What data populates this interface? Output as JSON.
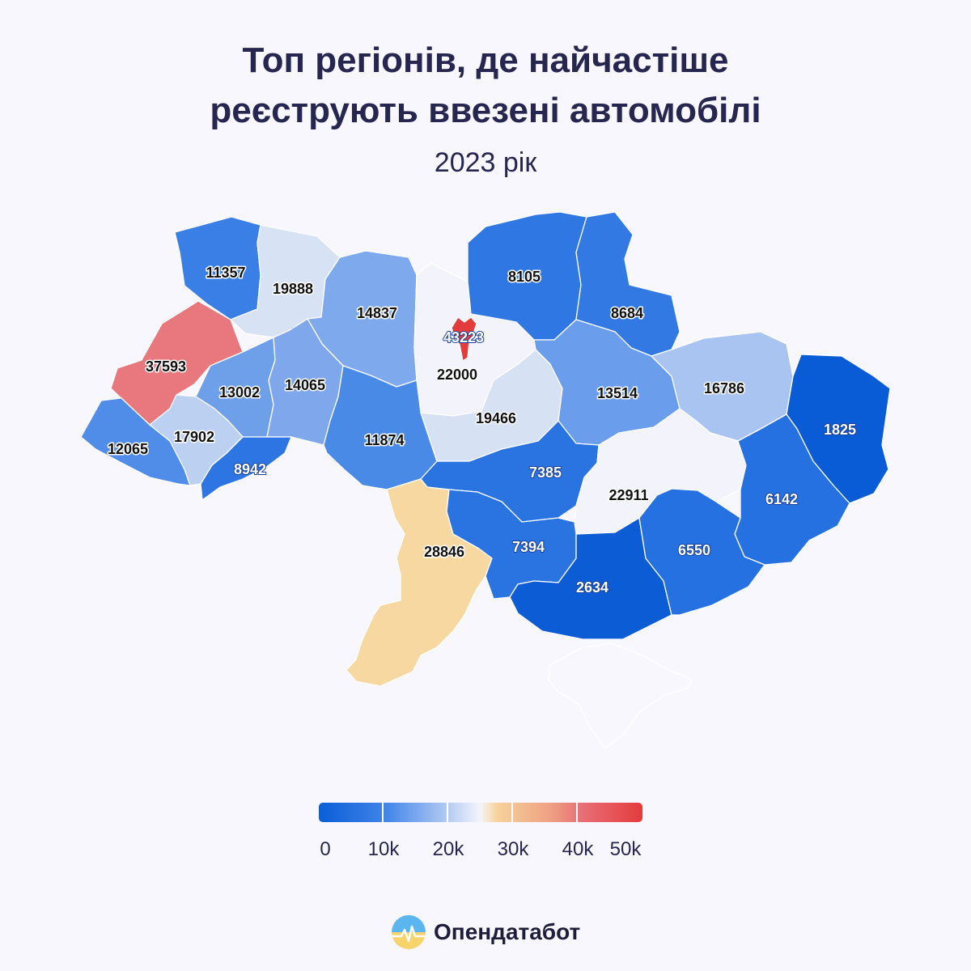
{
  "header": {
    "title_line1": "Топ регіонів, де найчастіше",
    "title_line2": "реєструють ввезені автомобілі",
    "subtitle": "2023 рік"
  },
  "map_data": {
    "regions": [
      {
        "id": "volyn",
        "value": 11357,
        "color": "#3a7fe6"
      },
      {
        "id": "rivne",
        "value": 19888,
        "color": "#d7e2f4"
      },
      {
        "id": "zhytomyr",
        "value": 14837,
        "color": "#7ea9ec"
      },
      {
        "id": "kyiv-oblast",
        "value": 22000,
        "color": "#f3f4fb"
      },
      {
        "id": "kyiv-city",
        "value": 43223,
        "color": "#e33c3c"
      },
      {
        "id": "chernihiv",
        "value": 8105,
        "color": "#2f78e4"
      },
      {
        "id": "sumy",
        "value": 8684,
        "color": "#3379e4"
      },
      {
        "id": "lviv",
        "value": 37593,
        "color": "#e9787e"
      },
      {
        "id": "ternopil",
        "value": 13002,
        "color": "#6ea0ea"
      },
      {
        "id": "khmelnytskyi",
        "value": 14065,
        "color": "#7fa8ec"
      },
      {
        "id": "vinnytsia",
        "value": 11874,
        "color": "#4a8ae7"
      },
      {
        "id": "cherkasy",
        "value": 19466,
        "color": "#d6e1f4"
      },
      {
        "id": "poltava",
        "value": 13514,
        "color": "#6a9deb"
      },
      {
        "id": "kharkiv",
        "value": 16786,
        "color": "#a9c4f0"
      },
      {
        "id": "luhansk",
        "value": 1825,
        "color": "#0a5bd6"
      },
      {
        "id": "zakarpattia",
        "value": 12065,
        "color": "#4f8de8"
      },
      {
        "id": "ivano-frankivsk",
        "value": 17902,
        "color": "#bcd0f2"
      },
      {
        "id": "chernivtsi",
        "value": 8942,
        "color": "#2c75e3"
      },
      {
        "id": "kirovohrad",
        "value": 7385,
        "color": "#2a74e2"
      },
      {
        "id": "dnipropetrovsk",
        "value": 22911,
        "color": "#f3f4fb"
      },
      {
        "id": "donetsk",
        "value": 6142,
        "color": "#2571e2"
      },
      {
        "id": "odesa",
        "value": 28846,
        "color": "#f6d8a0"
      },
      {
        "id": "mykolaiv",
        "value": 7394,
        "color": "#2a74e2"
      },
      {
        "id": "kherson",
        "value": 2634,
        "color": "#0c5cd6"
      },
      {
        "id": "zaporizhzhia",
        "value": 6550,
        "color": "#2671e2"
      },
      {
        "id": "crimea",
        "value": null,
        "color": "#f7f7fd"
      }
    ]
  },
  "legend": {
    "ticks": [
      "0",
      "10k",
      "20k",
      "30k",
      "40k",
      "50k"
    ],
    "range": [
      0,
      50000
    ],
    "gradient_colors": [
      "#0b5ed7",
      "#3d82e8",
      "#b4ccf2",
      "#f5f5fb",
      "#f6d39c",
      "#ef9f82",
      "#e9727a",
      "#e33c3c"
    ]
  },
  "brand": {
    "name": "Опендатабот",
    "logo_icon": "heartbeat-circle-icon"
  }
}
